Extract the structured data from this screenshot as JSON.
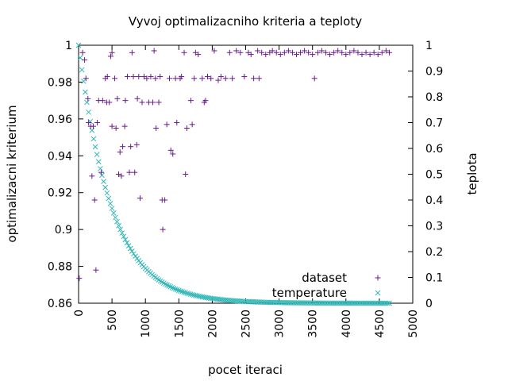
{
  "chart_data": {
    "type": "scatter",
    "title": "Vyvoj optimalizacniho kriteria a teploty",
    "xlabel": "pocet iteraci",
    "ylabel": "optimalizacni kriterium",
    "y2label": "teplota",
    "xlim": [
      0,
      5000
    ],
    "ylim": [
      0.86,
      1.0
    ],
    "y2lim": [
      0,
      1
    ],
    "xticks": [
      "0",
      "500",
      "1000",
      "1500",
      "2000",
      "2500",
      "3000",
      "3500",
      "4000",
      "4500",
      "5000"
    ],
    "yticks": [
      "0.86",
      "0.88",
      "0.9",
      "0.92",
      "0.94",
      "0.96",
      "0.98",
      "1"
    ],
    "y2ticks": [
      "0",
      "0.1",
      "0.2",
      "0.3",
      "0.4",
      "0.5",
      "0.6",
      "0.7",
      "0.8",
      "0.9",
      "1"
    ],
    "grid": false,
    "legend_position": "bottom-right",
    "colors": {
      "dataset": "#6a1b8a",
      "temperature": "#33b7b7"
    },
    "series": [
      {
        "name": "dataset",
        "marker": "+",
        "axis": "left",
        "points": [
          [
            10,
            0.8735
          ],
          [
            60,
            0.996
          ],
          [
            90,
            0.992
          ],
          [
            110,
            0.982
          ],
          [
            140,
            0.971
          ],
          [
            150,
            0.958
          ],
          [
            180,
            0.956
          ],
          [
            200,
            0.929
          ],
          [
            220,
            0.956
          ],
          [
            240,
            0.916
          ],
          [
            260,
            0.878
          ],
          [
            280,
            0.958
          ],
          [
            300,
            0.97
          ],
          [
            340,
            0.931
          ],
          [
            360,
            0.97
          ],
          [
            400,
            0.982
          ],
          [
            420,
            0.969
          ],
          [
            430,
            0.983
          ],
          [
            460,
            0.969
          ],
          [
            480,
            0.994
          ],
          [
            500,
            0.956
          ],
          [
            500,
            0.996
          ],
          [
            540,
            0.982
          ],
          [
            560,
            0.955
          ],
          [
            580,
            0.971
          ],
          [
            600,
            0.93
          ],
          [
            620,
            0.942
          ],
          [
            640,
            0.929
          ],
          [
            660,
            0.945
          ],
          [
            690,
            0.956
          ],
          [
            700,
            0.97
          ],
          [
            730,
            0.983
          ],
          [
            760,
            0.931
          ],
          [
            780,
            0.945
          ],
          [
            800,
            0.996
          ],
          [
            820,
            0.983
          ],
          [
            840,
            0.931
          ],
          [
            870,
            0.946
          ],
          [
            880,
            0.971
          ],
          [
            900,
            0.983
          ],
          [
            920,
            0.917
          ],
          [
            950,
            0.969
          ],
          [
            980,
            0.983
          ],
          [
            1020,
            0.982
          ],
          [
            1050,
            0.969
          ],
          [
            1080,
            0.983
          ],
          [
            1110,
            0.969
          ],
          [
            1130,
            0.997
          ],
          [
            1150,
            0.982
          ],
          [
            1160,
            0.955
          ],
          [
            1200,
            0.969
          ],
          [
            1220,
            0.983
          ],
          [
            1250,
            0.916
          ],
          [
            1260,
            0.9
          ],
          [
            1290,
            0.916
          ],
          [
            1320,
            0.957
          ],
          [
            1360,
            0.982
          ],
          [
            1380,
            0.943
          ],
          [
            1410,
            0.941
          ],
          [
            1450,
            0.982
          ],
          [
            1470,
            0.958
          ],
          [
            1520,
            0.982
          ],
          [
            1540,
            0.983
          ],
          [
            1580,
            0.996
          ],
          [
            1600,
            0.93
          ],
          [
            1620,
            0.955
          ],
          [
            1680,
            0.97
          ],
          [
            1700,
            0.957
          ],
          [
            1730,
            0.982
          ],
          [
            1750,
            0.996
          ],
          [
            1790,
            0.995
          ],
          [
            1850,
            0.982
          ],
          [
            1880,
            0.969
          ],
          [
            1900,
            0.97
          ],
          [
            1930,
            0.983
          ],
          [
            1980,
            0.982
          ],
          [
            2030,
            0.997
          ],
          [
            2090,
            0.981
          ],
          [
            2130,
            0.983
          ],
          [
            2200,
            0.982
          ],
          [
            2260,
            0.996
          ],
          [
            2300,
            0.982
          ],
          [
            2360,
            0.997
          ],
          [
            2420,
            0.996
          ],
          [
            2480,
            0.983
          ],
          [
            2540,
            0.996
          ],
          [
            2580,
            0.995
          ],
          [
            2620,
            0.982
          ],
          [
            2680,
            0.997
          ],
          [
            2700,
            0.982
          ],
          [
            2740,
            0.996
          ],
          [
            2800,
            0.995
          ],
          [
            2860,
            0.996
          ],
          [
            2900,
            0.997
          ],
          [
            2960,
            0.996
          ],
          [
            3020,
            0.995
          ],
          [
            3080,
            0.996
          ],
          [
            3140,
            0.997
          ],
          [
            3200,
            0.996
          ],
          [
            3260,
            0.995
          ],
          [
            3320,
            0.996
          ],
          [
            3380,
            0.997
          ],
          [
            3440,
            0.996
          ],
          [
            3500,
            0.995
          ],
          [
            3530,
            0.982
          ],
          [
            3580,
            0.996
          ],
          [
            3640,
            0.997
          ],
          [
            3700,
            0.996
          ],
          [
            3760,
            0.995
          ],
          [
            3820,
            0.996
          ],
          [
            3880,
            0.997
          ],
          [
            3940,
            0.996
          ],
          [
            4000,
            0.995
          ],
          [
            4060,
            0.996
          ],
          [
            4120,
            0.997
          ],
          [
            4180,
            0.996
          ],
          [
            4240,
            0.995
          ],
          [
            4300,
            0.996
          ],
          [
            4360,
            0.995
          ],
          [
            4420,
            0.996
          ],
          [
            4480,
            0.995
          ],
          [
            4540,
            0.996
          ],
          [
            4600,
            0.997
          ],
          [
            4650,
            0.996
          ]
        ]
      },
      {
        "name": "temperature",
        "marker": "x",
        "axis": "right",
        "decay": "exponential, approx. 0.998 per iteration from 1.0 at iteration 0",
        "x_range": [
          0,
          4650
        ],
        "x_step": 25
      }
    ]
  }
}
